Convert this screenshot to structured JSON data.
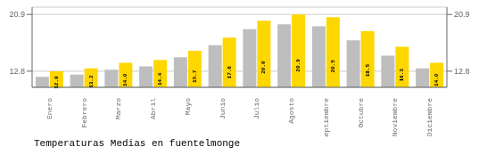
{
  "chart_data": {
    "type": "bar",
    "title": "Temperaturas Medias en fuentelmonge",
    "categories": [
      "Enero",
      "Febrero",
      "Marzo",
      "Abril",
      "Mayo",
      "Junio",
      "Julio",
      "Agosto",
      "Septiembre",
      "Octubre",
      "Noviembre",
      "Diciembre"
    ],
    "series": [
      {
        "color": "#BEBEBE",
        "values": [
          12.0,
          12.3,
          13.0,
          13.5,
          14.8,
          16.5,
          18.8,
          19.5,
          19.2,
          17.2,
          15.0,
          13.2
        ]
      },
      {
        "color": "#FFD700",
        "values": [
          12.8,
          13.2,
          14.0,
          14.4,
          15.7,
          17.6,
          20.0,
          20.9,
          20.5,
          18.5,
          16.3,
          14.0
        ],
        "data_labels": true,
        "value_labels": [
          "12.8",
          "13.2",
          "14.0",
          "14.4",
          "15.7",
          "17.6",
          "20.0",
          "20.9",
          "20.5",
          "18.5",
          "16.3",
          "14.0"
        ]
      }
    ],
    "ylim": [
      10.5,
      21.945
    ],
    "yticks": [
      12.8,
      20.9
    ],
    "y2lim": [
      10.5,
      21.945
    ],
    "y2ticks": [
      12.8,
      20.9
    ],
    "grid": true
  }
}
